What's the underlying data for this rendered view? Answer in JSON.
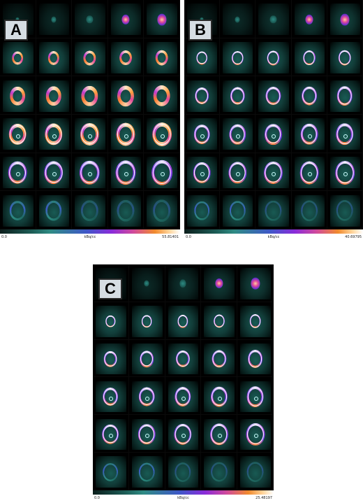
{
  "panels": [
    {
      "label": "A",
      "colorbar": {
        "min": "0.0",
        "unit": "kBq/cc",
        "max": "55.81401"
      }
    },
    {
      "label": "B",
      "colorbar": {
        "min": "0.0",
        "unit": "kBq/cc",
        "max": "40.69795"
      }
    },
    {
      "label": "C",
      "colorbar": {
        "min": "0.0",
        "unit": "kBq/cc",
        "max": "25.48197"
      }
    }
  ],
  "colors": {
    "background_tissue": "#1a5f58",
    "colormap": [
      "#0b1e1c",
      "#1d5e57",
      "#2f8b84",
      "#3e57c8",
      "#8a2bd9",
      "#d04a9b",
      "#f08a2d",
      "#ffd49a",
      "#ffffff"
    ],
    "roi_contour": "#ffffff",
    "label_box": "#d6dde3"
  },
  "icons": {
    "slice_thumbnail": "cardiac-short-axis-slice-icon"
  }
}
